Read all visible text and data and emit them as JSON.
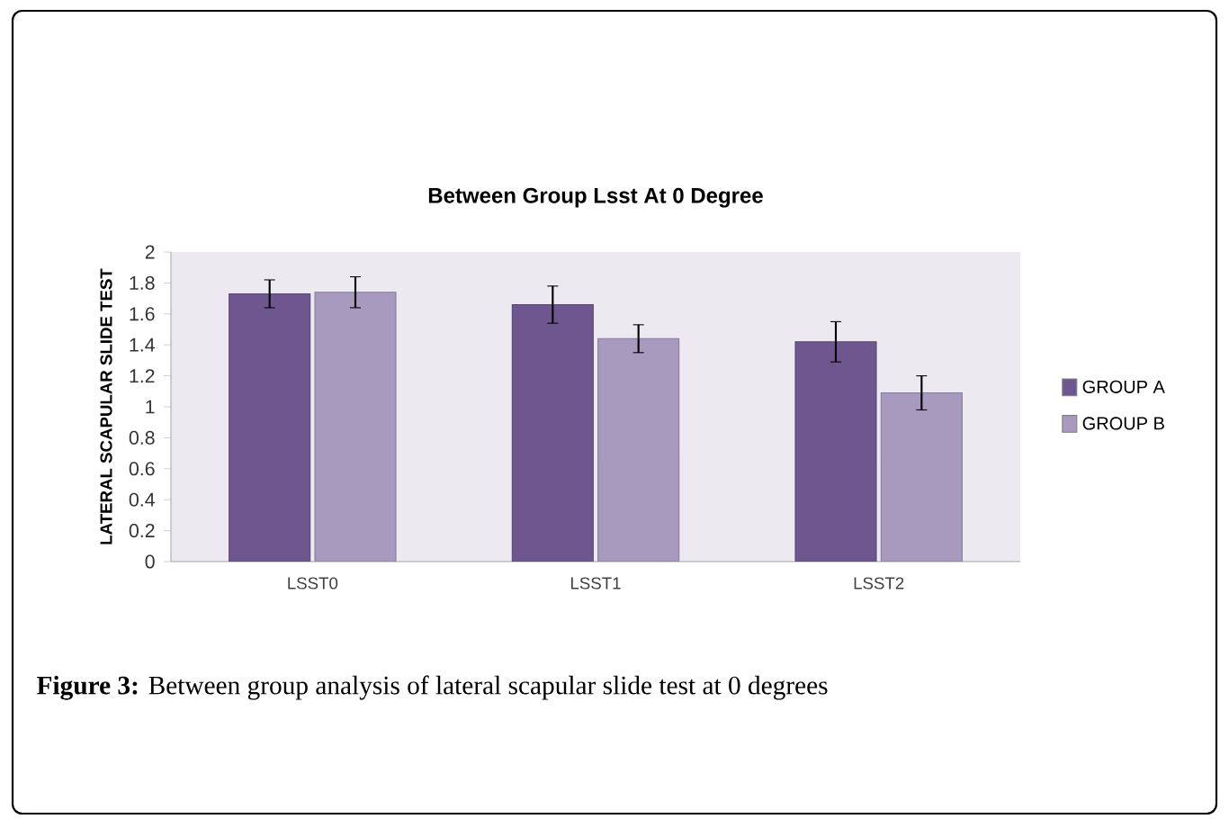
{
  "chart_data": {
    "type": "bar",
    "title": "Between Group Lsst At 0 Degree",
    "ylabel": "LATERAL SCAPULAR SLIDE TEST",
    "categories": [
      "LSST0",
      "LSST1",
      "LSST2"
    ],
    "series": [
      {
        "name": "GROUP A",
        "color": "#6e578f",
        "values": [
          1.73,
          1.66,
          1.42
        ],
        "errors": [
          0.09,
          0.12,
          0.13
        ]
      },
      {
        "name": "GROUP B",
        "color": "#a899bf",
        "values": [
          1.74,
          1.44,
          1.09
        ],
        "errors": [
          0.1,
          0.09,
          0.11
        ]
      }
    ],
    "ylim": [
      0,
      2
    ],
    "yticks": [
      0,
      0.2,
      0.4,
      0.6,
      0.8,
      1,
      1.2,
      1.4,
      1.6,
      1.8,
      2
    ],
    "legend": "right",
    "annotations": [
      "**Figure 3:** Between group analysis of lateral scapular slide test at 0 degrees"
    ]
  }
}
